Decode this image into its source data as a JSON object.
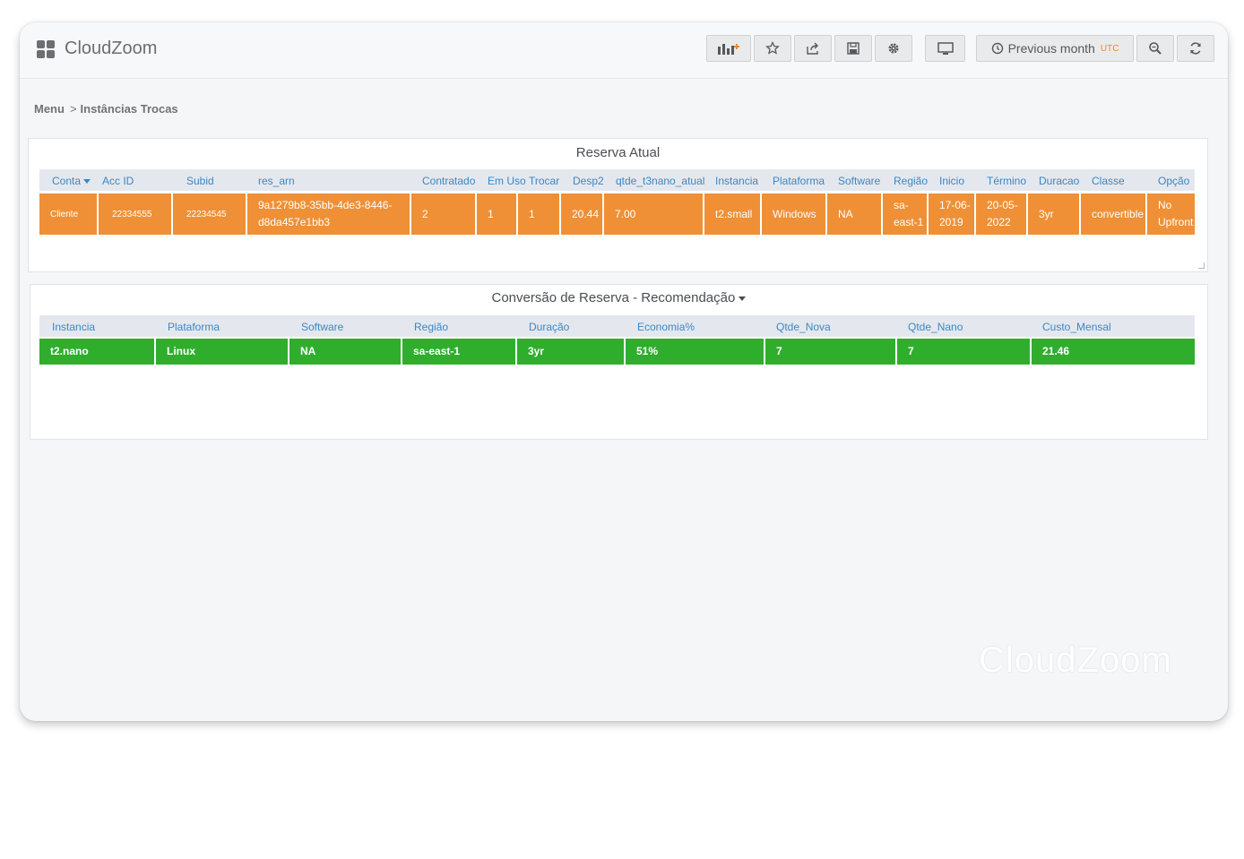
{
  "app": {
    "title": "CloudZoom",
    "watermark": "CloudZoom"
  },
  "toolbar": {
    "time_range": "Previous month",
    "timezone": "UTC"
  },
  "breadcrumb": {
    "root": "Menu",
    "separator": ">",
    "current": "Instâncias Trocas"
  },
  "reserva": {
    "title": "Reserva Atual",
    "headers": [
      "Conta",
      "Acc ID",
      "Subid",
      "res_arn",
      "Contratado",
      "Em Uso",
      "Trocar",
      "Desp2",
      "qtde_t3nano_atual",
      "Instancia",
      "Plataforma",
      "Software",
      "Região",
      "Inicio",
      "Término",
      "Duracao",
      "Classe",
      "Opção"
    ],
    "sort_column": "Conta",
    "row": [
      "Cliente",
      "22334555",
      "22234545",
      "9a1279b8-35bb-4de3-8446-d8da457e1bb3",
      "2",
      "1",
      "1",
      "20.44",
      "7.00",
      "t2.small",
      "Windows",
      "NA",
      "sa-east-1",
      "17-06-2019",
      "20-05-2022",
      "3yr",
      "convertible",
      "No Upfront"
    ],
    "row_color": "#ef9036"
  },
  "conversao": {
    "title": "Conversão de Reserva - Recomendação",
    "headers": [
      "Instancia",
      "Plataforma",
      "Software",
      "Região",
      "Duração",
      "Economia%",
      "Qtde_Nova",
      "Qtde_Nano",
      "Custo_Mensal"
    ],
    "row": [
      "t2.nano",
      "Linux",
      "NA",
      "sa-east-1",
      "3yr",
      "51%",
      "7",
      "7",
      "21.46"
    ],
    "row_color": "#2fae2e"
  },
  "colors": {
    "accent_header_text": "#3a87c6",
    "timezone": "#ef8a32"
  },
  "icons": [
    "dashboard-grid-icon",
    "add-panel-icon",
    "star-icon",
    "share-icon",
    "save-icon",
    "gear-icon",
    "monitor-icon",
    "clock-icon",
    "zoom-out-icon",
    "refresh-icon",
    "sort-caret-icon",
    "dropdown-caret-icon"
  ]
}
